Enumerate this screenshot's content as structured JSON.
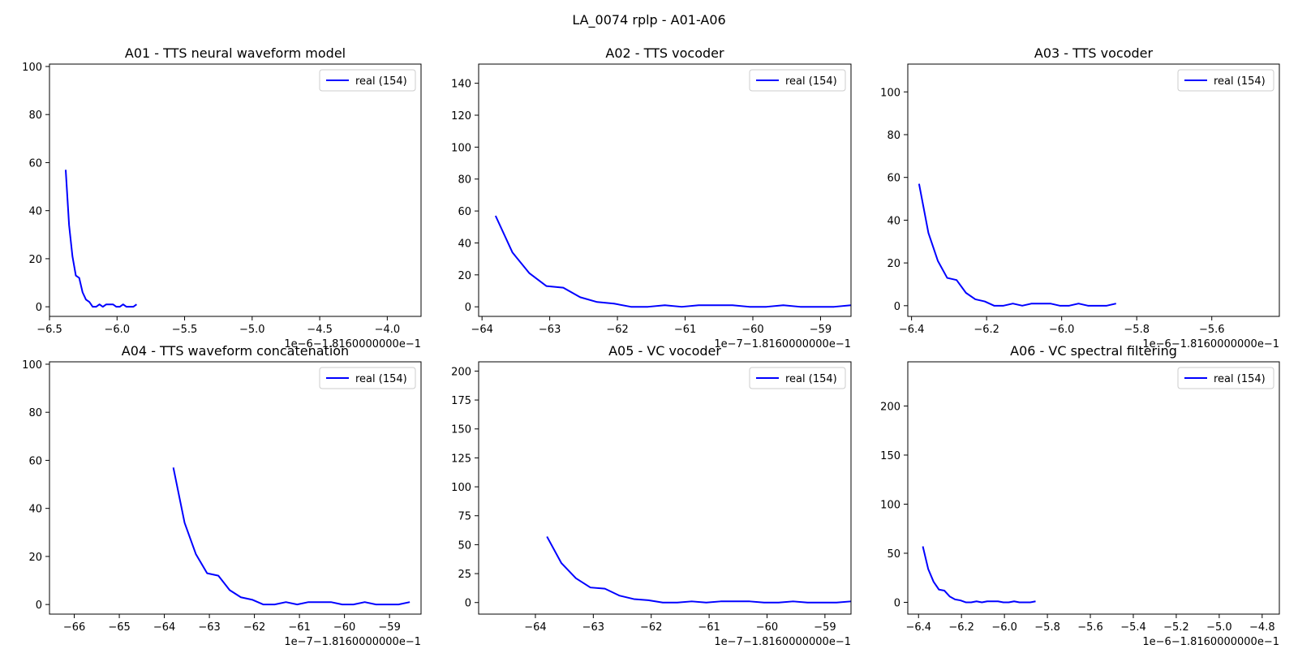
{
  "figure": {
    "title": "LA_0074 rplp - A01-A06"
  },
  "colors": {
    "line": "#0000ff",
    "axes": "#000000",
    "background": "#ffffff"
  },
  "chart_data": [
    {
      "type": "line",
      "title": "A01 - TTS neural waveform model",
      "offset_label": "1e−6−1.8160000000e−1",
      "xlim": [
        -6.5,
        -3.75
      ],
      "ylim": [
        -4,
        101
      ],
      "xticks": [
        -6.5,
        -6.0,
        -5.5,
        -5.0,
        -4.5,
        -4.0
      ],
      "xtick_labels": [
        "−6.5",
        "−6.0",
        "−5.5",
        "−5.0",
        "−4.5",
        "−4.0"
      ],
      "yticks": [
        0,
        20,
        40,
        60,
        80,
        100
      ],
      "ytick_labels": [
        "0",
        "20",
        "40",
        "60",
        "80",
        "100"
      ],
      "legend": "top-right",
      "series": [
        {
          "name": "real (154)",
          "x": [
            -6.38,
            -6.355,
            -6.33,
            -6.305,
            -6.28,
            -6.255,
            -6.23,
            -6.205,
            -6.18,
            -6.155,
            -6.13,
            -6.105,
            -6.08,
            -6.055,
            -6.03,
            -6.005,
            -5.98,
            -5.955,
            -5.93,
            -5.905,
            -5.88,
            -5.855
          ],
          "y": [
            57,
            34,
            21,
            13,
            12,
            6,
            3,
            2,
            0,
            0,
            1,
            0,
            1,
            1,
            1,
            0,
            0,
            1,
            0,
            0,
            0,
            1
          ]
        }
      ]
    },
    {
      "type": "line",
      "title": "A02 - TTS vocoder",
      "offset_label": "1e−7−1.8160000000e−1",
      "xlim": [
        -64.05,
        -58.55
      ],
      "ylim": [
        -6,
        152
      ],
      "xticks": [
        -64,
        -63,
        -62,
        -61,
        -60,
        -59
      ],
      "xtick_labels": [
        "−64",
        "−63",
        "−62",
        "−61",
        "−60",
        "−59"
      ],
      "yticks": [
        0,
        20,
        40,
        60,
        80,
        100,
        120,
        140
      ],
      "ytick_labels": [
        "0",
        "20",
        "40",
        "60",
        "80",
        "100",
        "120",
        "140"
      ],
      "legend": "top-right",
      "series": [
        {
          "name": "real (154)",
          "x": [
            -63.8,
            -63.55,
            -63.3,
            -63.05,
            -62.8,
            -62.55,
            -62.3,
            -62.05,
            -61.8,
            -61.55,
            -61.3,
            -61.05,
            -60.8,
            -60.55,
            -60.3,
            -60.05,
            -59.8,
            -59.55,
            -59.3,
            -59.05,
            -58.8,
            -58.55
          ],
          "y": [
            57,
            34,
            21,
            13,
            12,
            6,
            3,
            2,
            0,
            0,
            1,
            0,
            1,
            1,
            1,
            0,
            0,
            1,
            0,
            0,
            0,
            1
          ]
        }
      ]
    },
    {
      "type": "line",
      "title": "A03 - TTS vocoder",
      "offset_label": "1e−6−1.8160000000e−1",
      "xlim": [
        -6.41,
        -5.42
      ],
      "ylim": [
        -5,
        113
      ],
      "xticks": [
        -6.4,
        -6.2,
        -6.0,
        -5.8,
        -5.6
      ],
      "xtick_labels": [
        "−6.4",
        "−6.2",
        "−6.0",
        "−5.8",
        "−5.6"
      ],
      "yticks": [
        0,
        20,
        40,
        60,
        80,
        100
      ],
      "ytick_labels": [
        "0",
        "20",
        "40",
        "60",
        "80",
        "100"
      ],
      "legend": "top-right",
      "series": [
        {
          "name": "real (154)",
          "x": [
            -6.38,
            -6.355,
            -6.33,
            -6.305,
            -6.28,
            -6.255,
            -6.23,
            -6.205,
            -6.18,
            -6.155,
            -6.13,
            -6.105,
            -6.08,
            -6.055,
            -6.03,
            -6.005,
            -5.98,
            -5.955,
            -5.93,
            -5.905,
            -5.88,
            -5.855
          ],
          "y": [
            57,
            34,
            21,
            13,
            12,
            6,
            3,
            2,
            0,
            0,
            1,
            0,
            1,
            1,
            1,
            0,
            0,
            1,
            0,
            0,
            0,
            1
          ]
        }
      ]
    },
    {
      "type": "line",
      "title": "A04 - TTS waveform concatenation",
      "offset_label": "1e−7−1.8160000000e−1",
      "xlim": [
        -66.55,
        -58.3
      ],
      "ylim": [
        -4,
        101
      ],
      "xticks": [
        -66,
        -65,
        -64,
        -63,
        -62,
        -61,
        -60,
        -59
      ],
      "xtick_labels": [
        "−66",
        "−65",
        "−64",
        "−63",
        "−62",
        "−61",
        "−60",
        "−59"
      ],
      "yticks": [
        0,
        20,
        40,
        60,
        80,
        100
      ],
      "ytick_labels": [
        "0",
        "20",
        "40",
        "60",
        "80",
        "100"
      ],
      "legend": "top-right",
      "series": [
        {
          "name": "real (154)",
          "x": [
            -63.8,
            -63.55,
            -63.3,
            -63.05,
            -62.8,
            -62.55,
            -62.3,
            -62.05,
            -61.8,
            -61.55,
            -61.3,
            -61.05,
            -60.8,
            -60.55,
            -60.3,
            -60.05,
            -59.8,
            -59.55,
            -59.3,
            -59.05,
            -58.8,
            -58.55
          ],
          "y": [
            57,
            34,
            21,
            13,
            12,
            6,
            3,
            2,
            0,
            0,
            1,
            0,
            1,
            1,
            1,
            0,
            0,
            1,
            0,
            0,
            0,
            1
          ]
        }
      ]
    },
    {
      "type": "line",
      "title": "A05 - VC vocoder",
      "offset_label": "1e−7−1.8160000000e−1",
      "xlim": [
        -64.98,
        -58.55
      ],
      "ylim": [
        -10,
        208
      ],
      "xticks": [
        -64,
        -63,
        -62,
        -61,
        -60,
        -59
      ],
      "xtick_labels": [
        "−64",
        "−63",
        "−62",
        "−61",
        "−60",
        "−59"
      ],
      "yticks": [
        0,
        25,
        50,
        75,
        100,
        125,
        150,
        175,
        200
      ],
      "ytick_labels": [
        "0",
        "25",
        "50",
        "75",
        "100",
        "125",
        "150",
        "175",
        "200"
      ],
      "legend": "top-right",
      "series": [
        {
          "name": "real (154)",
          "x": [
            -63.8,
            -63.55,
            -63.3,
            -63.05,
            -62.8,
            -62.55,
            -62.3,
            -62.05,
            -61.8,
            -61.55,
            -61.3,
            -61.05,
            -60.8,
            -60.55,
            -60.3,
            -60.05,
            -59.8,
            -59.55,
            -59.3,
            -59.05,
            -58.8,
            -58.55
          ],
          "y": [
            57,
            34,
            21,
            13,
            12,
            6,
            3,
            2,
            0,
            0,
            1,
            0,
            1,
            1,
            1,
            0,
            0,
            1,
            0,
            0,
            0,
            1
          ]
        }
      ]
    },
    {
      "type": "line",
      "title": "A06 - VC spectral filtering",
      "offset_label": "1e−6−1.8160000000e−1",
      "xlim": [
        -6.45,
        -4.72
      ],
      "ylim": [
        -12,
        245
      ],
      "xticks": [
        -6.4,
        -6.2,
        -6.0,
        -5.8,
        -5.6,
        -5.4,
        -5.2,
        -5.0,
        -4.8
      ],
      "xtick_labels": [
        "−6.4",
        "−6.2",
        "−6.0",
        "−5.8",
        "−5.6",
        "−5.4",
        "−5.2",
        "−5.0",
        "−4.8"
      ],
      "yticks": [
        0,
        50,
        100,
        150,
        200
      ],
      "ytick_labels": [
        "0",
        "50",
        "100",
        "150",
        "200"
      ],
      "legend": "top-right",
      "series": [
        {
          "name": "real (154)",
          "x": [
            -6.38,
            -6.355,
            -6.33,
            -6.305,
            -6.28,
            -6.255,
            -6.23,
            -6.205,
            -6.18,
            -6.155,
            -6.13,
            -6.105,
            -6.08,
            -6.055,
            -6.03,
            -6.005,
            -5.98,
            -5.955,
            -5.93,
            -5.905,
            -5.88,
            -5.855
          ],
          "y": [
            57,
            34,
            21,
            13,
            12,
            6,
            3,
            2,
            0,
            0,
            1,
            0,
            1,
            1,
            1,
            0,
            0,
            1,
            0,
            0,
            0,
            1
          ]
        }
      ]
    }
  ]
}
